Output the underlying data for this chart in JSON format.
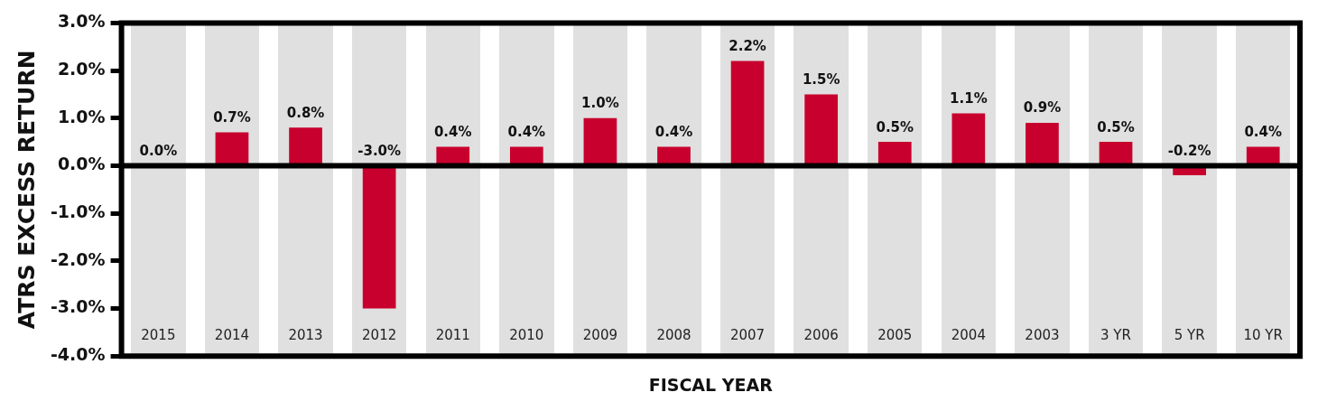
{
  "chart_data": {
    "type": "bar",
    "xlabel": "FISCAL YEAR",
    "ylabel": "ATRS EXCESS RETURN",
    "categories": [
      "2015",
      "2014",
      "2013",
      "2012",
      "2011",
      "2010",
      "2009",
      "2008",
      "2007",
      "2006",
      "2005",
      "2004",
      "2003",
      "3 YR",
      "5 YR",
      "10 YR"
    ],
    "values": [
      0.0,
      0.7,
      0.8,
      -3.0,
      0.4,
      0.4,
      1.0,
      0.4,
      2.2,
      1.5,
      0.5,
      1.1,
      0.9,
      0.5,
      -0.2,
      0.4
    ],
    "value_labels": [
      "0.0%",
      "0.7%",
      "0.8%",
      "-3.0%",
      "0.4%",
      "0.4%",
      "1.0%",
      "0.4%",
      "2.2%",
      "1.5%",
      "0.5%",
      "1.1%",
      "0.9%",
      "0.5%",
      "-0.2%",
      "0.4%"
    ],
    "color": "#c8002d",
    "ylim": [
      -4,
      3
    ],
    "yticks": [
      {
        "value": -4,
        "label": "-4.0%"
      },
      {
        "value": -3,
        "label": "-3.0%"
      },
      {
        "value": -2,
        "label": "-2.0%"
      },
      {
        "value": -1,
        "label": "-1.0%"
      },
      {
        "value": 0,
        "label": "0.0%"
      },
      {
        "value": 1,
        "label": "1.0%"
      },
      {
        "value": 2,
        "label": "2.0%"
      },
      {
        "value": 3,
        "label": "3.0%"
      }
    ],
    "ref_lines": [
      {
        "axis": "y",
        "value": 0,
        "color": "#000000"
      }
    ],
    "grid": false,
    "legend": false
  }
}
